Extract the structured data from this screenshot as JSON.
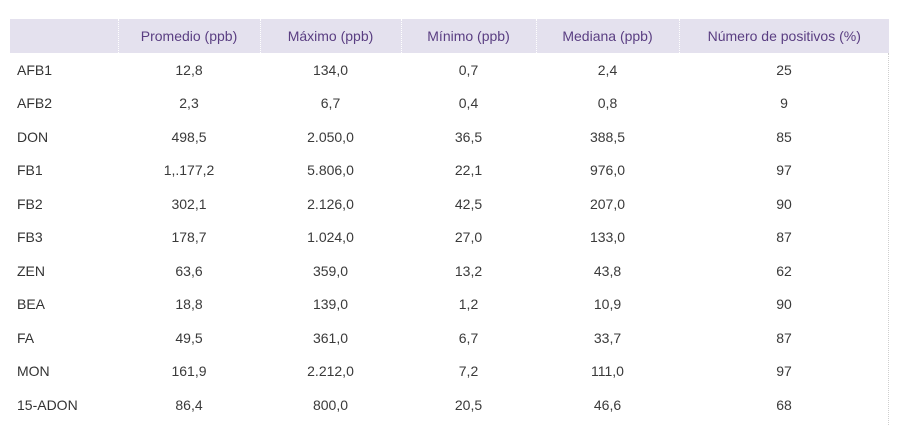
{
  "table": {
    "headers": [
      "",
      "Promedio (ppb)",
      "Máximo (ppb)",
      "Mínimo (ppb)",
      "Mediana (ppb)",
      "Número de positivos (%)"
    ],
    "rows": [
      [
        "AFB1",
        "12,8",
        "134,0",
        "0,7",
        "2,4",
        "25"
      ],
      [
        "AFB2",
        "2,3",
        "6,7",
        "0,4",
        "0,8",
        "9"
      ],
      [
        "DON",
        "498,5",
        "2.050,0",
        "36,5",
        "388,5",
        "85"
      ],
      [
        "FB1",
        "1,.177,2",
        "5.806,0",
        "22,1",
        "976,0",
        "97"
      ],
      [
        "FB2",
        "302,1",
        "2.126,0",
        "42,5",
        "207,0",
        "90"
      ],
      [
        "FB3",
        "178,7",
        "1.024,0",
        "27,0",
        "133,0",
        "87"
      ],
      [
        "ZEN",
        "63,6",
        "359,0",
        "13,2",
        "43,8",
        "62"
      ],
      [
        "BEA",
        "18,8",
        "139,0",
        "1,2",
        "10,9",
        "90"
      ],
      [
        "FA",
        "49,5",
        "361,0",
        "6,7",
        "33,7",
        "87"
      ],
      [
        "MON",
        "161,9",
        "2.212,0",
        "7,2",
        "111,0",
        "97"
      ],
      [
        "15-ADON",
        "86,4",
        "800,0",
        "20,5",
        "46,6",
        "68"
      ]
    ]
  },
  "colors": {
    "header_bg": "#e4e1ee",
    "header_text": "#5a3e82",
    "body_text": "#3a3a3a"
  }
}
